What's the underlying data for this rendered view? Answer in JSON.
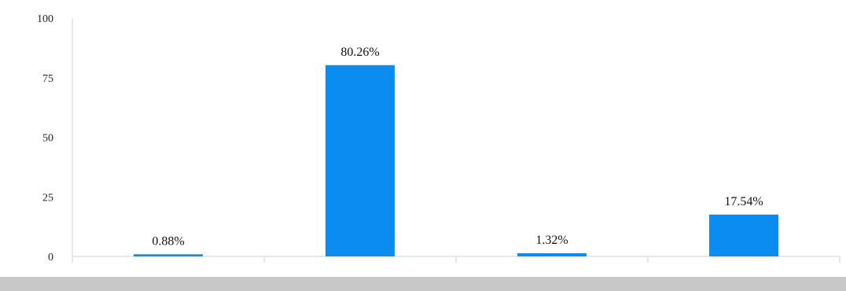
{
  "chart_data": {
    "type": "bar",
    "categories": [
      "",
      "",
      "",
      ""
    ],
    "values": [
      0.88,
      80.26,
      1.32,
      17.54
    ],
    "data_labels": [
      "0.88%",
      "80.26%",
      "1.32%",
      "17.54%"
    ],
    "title": "",
    "xlabel": "",
    "ylabel": "",
    "ylim": [
      0,
      100
    ],
    "yticks": [
      0,
      25,
      50,
      75,
      100
    ],
    "ytick_labels": [
      "0",
      "25",
      "50",
      "75",
      "100"
    ],
    "grid": false,
    "legend": "none",
    "colors": {
      "bar": "#0A8CF0",
      "axis": "#C8D3DE",
      "bottom_band": "#C8C8C8"
    }
  }
}
